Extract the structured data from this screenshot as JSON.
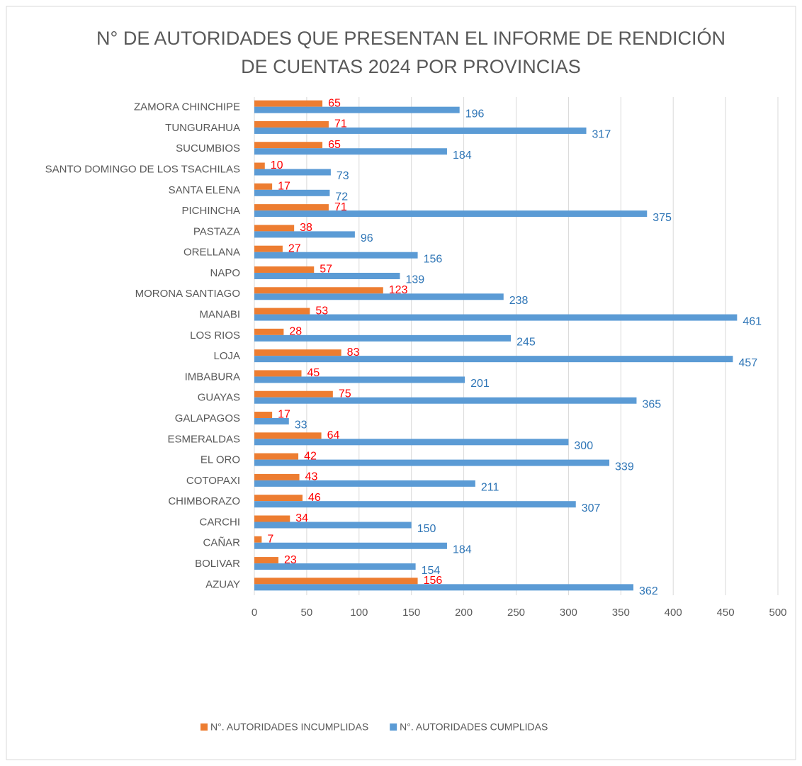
{
  "chart_data": {
    "type": "hbar",
    "title": [
      "N° DE AUTORIDADES QUE PRESENTAN EL INFORME DE RENDICIÓN",
      "DE CUENTAS 2024 POR PROVINCIAS"
    ],
    "categories": [
      "AZUAY",
      "BOLIVAR",
      "CAÑAR",
      "CARCHI",
      "CHIMBORAZO",
      "COTOPAXI",
      "EL ORO",
      "ESMERALDAS",
      "GALAPAGOS",
      "GUAYAS",
      "IMBABURA",
      "LOJA",
      "LOS RIOS",
      "MANABI",
      "MORONA SANTIAGO",
      "NAPO",
      "ORELLANA",
      "PASTAZA",
      "PICHINCHA",
      "SANTA ELENA",
      "SANTO DOMINGO DE LOS TSACHILAS",
      "SUCUMBIOS",
      "TUNGURAHUA",
      "ZAMORA CHINCHIPE"
    ],
    "series": [
      {
        "name": "N°. AUTORIDADES INCUMPLIDAS",
        "color": "#ed7d31",
        "label_color": "#ff0000",
        "values": [
          156,
          23,
          7,
          34,
          46,
          43,
          42,
          64,
          17,
          75,
          45,
          83,
          28,
          53,
          123,
          57,
          27,
          38,
          71,
          17,
          10,
          65,
          71,
          65
        ]
      },
      {
        "name": "N°. AUTORIDADES CUMPLIDAS",
        "color": "#5b9bd5",
        "label_color": "#2e75b6",
        "values": [
          362,
          154,
          184,
          150,
          307,
          211,
          339,
          300,
          33,
          365,
          201,
          457,
          245,
          461,
          238,
          139,
          156,
          96,
          375,
          72,
          73,
          184,
          317,
          196
        ]
      }
    ],
    "xlim": [
      0,
      500
    ],
    "xticks": [
      0,
      50,
      100,
      150,
      200,
      250,
      300,
      350,
      400,
      450,
      500
    ],
    "grid": true,
    "legend": "bottom"
  }
}
